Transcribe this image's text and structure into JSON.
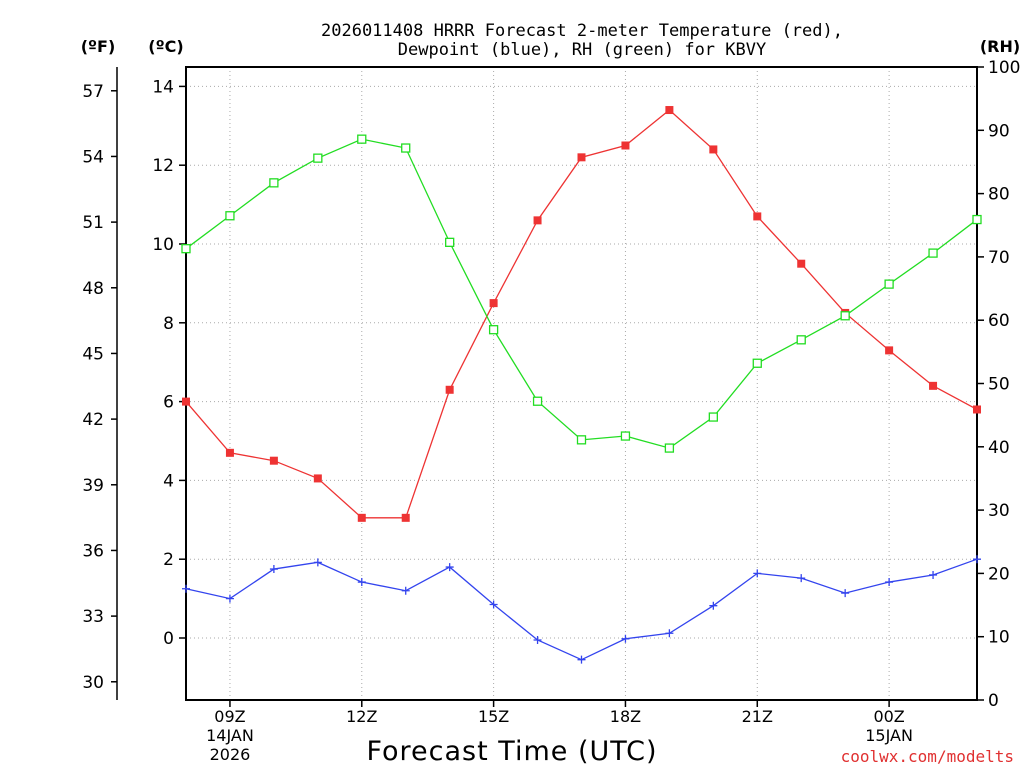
{
  "chart_data": {
    "type": "line",
    "title_line1": "2026011408 HRRR Forecast 2-meter Temperature (red),",
    "title_line2": "Dewpoint (blue), RH (green) for KBVY",
    "xlabel": "Forecast Time (UTC)",
    "credit": "coolwx.com/modelts",
    "unit_f": "(ºF)",
    "unit_c": "(ºC)",
    "unit_rh": "(RH)",
    "x_hours": [
      8,
      9,
      10,
      11,
      12,
      13,
      14,
      15,
      16,
      17,
      18,
      19,
      20,
      21,
      22,
      23,
      24,
      25,
      26
    ],
    "xlim": [
      8,
      26
    ],
    "x_ticks": [
      {
        "hour": 9,
        "label": "09Z",
        "date1": "14JAN",
        "date2": "2026"
      },
      {
        "hour": 12,
        "label": "12Z",
        "date1": "",
        "date2": ""
      },
      {
        "hour": 15,
        "label": "15Z",
        "date1": "",
        "date2": ""
      },
      {
        "hour": 18,
        "label": "18Z",
        "date1": "",
        "date2": ""
      },
      {
        "hour": 21,
        "label": "21Z",
        "date1": "",
        "date2": ""
      },
      {
        "hour": 24,
        "label": "00Z",
        "date1": "15JAN",
        "date2": ""
      }
    ],
    "celsius_axis": {
      "min": -1.5,
      "max": 14.5,
      "ticks": [
        "0",
        "2",
        "4",
        "6",
        "8",
        "10",
        "12",
        "14"
      ]
    },
    "fahrenheit_axis": {
      "ticks": [
        "30",
        "33",
        "36",
        "39",
        "42",
        "45",
        "48",
        "51",
        "54",
        "57"
      ]
    },
    "rh_axis": {
      "min": 0,
      "max": 100,
      "ticks": [
        "0",
        "10",
        "20",
        "30",
        "40",
        "50",
        "60",
        "70",
        "80",
        "90",
        "100"
      ]
    },
    "series": [
      {
        "name": "Temperature (°C)",
        "color": "#ee3333",
        "axis": "celsius",
        "marker": "filled-square",
        "values": [
          6.0,
          4.7,
          4.5,
          4.05,
          3.05,
          3.05,
          6.3,
          8.5,
          10.6,
          12.2,
          12.5,
          13.4,
          12.4,
          10.7,
          9.5,
          8.25,
          7.3,
          6.4,
          5.8
        ]
      },
      {
        "name": "Dewpoint (°C)",
        "color": "#3344ee",
        "axis": "celsius",
        "marker": "plus",
        "values": [
          1.25,
          1.0,
          1.75,
          1.92,
          1.42,
          1.2,
          1.8,
          0.85,
          -0.05,
          -0.55,
          -0.02,
          0.12,
          0.82,
          1.64,
          1.52,
          1.14,
          1.42,
          1.6,
          2.0
        ]
      },
      {
        "name": "Relative Humidity (%)",
        "color": "#22dd22",
        "axis": "rh",
        "marker": "open-square",
        "values": [
          71.3,
          76.5,
          81.7,
          85.6,
          88.6,
          87.2,
          72.3,
          58.5,
          47.2,
          41.1,
          41.7,
          39.8,
          44.7,
          53.2,
          56.9,
          60.7,
          65.7,
          70.6,
          75.9
        ]
      }
    ]
  }
}
